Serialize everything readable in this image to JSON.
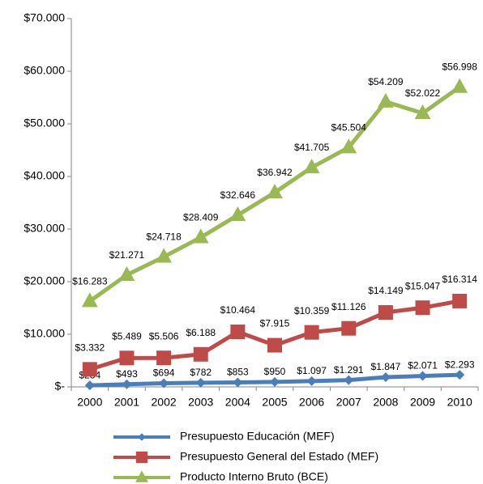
{
  "chart_data": {
    "type": "line",
    "categories": [
      "2000",
      "2001",
      "2002",
      "2003",
      "2004",
      "2005",
      "2006",
      "2007",
      "2008",
      "2009",
      "2010"
    ],
    "ylim": [
      0,
      70000
    ],
    "yticks": [
      {
        "value": 0,
        "label": "$-"
      },
      {
        "value": 10000,
        "label": "$10.000"
      },
      {
        "value": 20000,
        "label": "$20.000"
      },
      {
        "value": 30000,
        "label": "$30.000"
      },
      {
        "value": 40000,
        "label": "$40.000"
      },
      {
        "value": 50000,
        "label": "$50.000"
      },
      {
        "value": 60000,
        "label": "$60.000"
      },
      {
        "value": 70000,
        "label": "$70.000"
      }
    ],
    "legend": "bottom",
    "series": [
      {
        "name": "Presupuesto Educación (MEF)",
        "color": "#4a7ebb",
        "marker": "diamond",
        "values": [
          284,
          493,
          694,
          782,
          853,
          950,
          1097,
          1291,
          1847,
          2071,
          2293
        ],
        "value_labels": [
          "$284",
          "$493",
          "$694",
          "$782",
          "$853",
          "$950",
          "$1.097",
          "$1.291",
          "$1.847",
          "$2.071",
          "$2.293"
        ]
      },
      {
        "name": "Presupuesto General del Estado (MEF)",
        "color": "#be4b48",
        "marker": "square",
        "values": [
          3332,
          5489,
          5506,
          6188,
          10464,
          7915,
          10359,
          11126,
          14149,
          15047,
          16314
        ],
        "value_labels": [
          "$3.332",
          "$5.489",
          "$5.506",
          "$6.188",
          "$10.464",
          "$7.915",
          "$10.359",
          "$11.126",
          "$14.149",
          "$15.047",
          "$16.314"
        ]
      },
      {
        "name": "Producto Interno Bruto (BCE)",
        "color": "#98b954",
        "marker": "triangle",
        "values": [
          16283,
          21271,
          24718,
          28409,
          32646,
          36942,
          41705,
          45504,
          54209,
          52022,
          56998
        ],
        "value_labels": [
          "$16.283",
          "$21.271",
          "$24.718",
          "$28.409",
          "$32.646",
          "$36.942",
          "$41.705",
          "$45.504",
          "$54.209",
          "$52.022",
          "$56.998"
        ]
      }
    ]
  }
}
